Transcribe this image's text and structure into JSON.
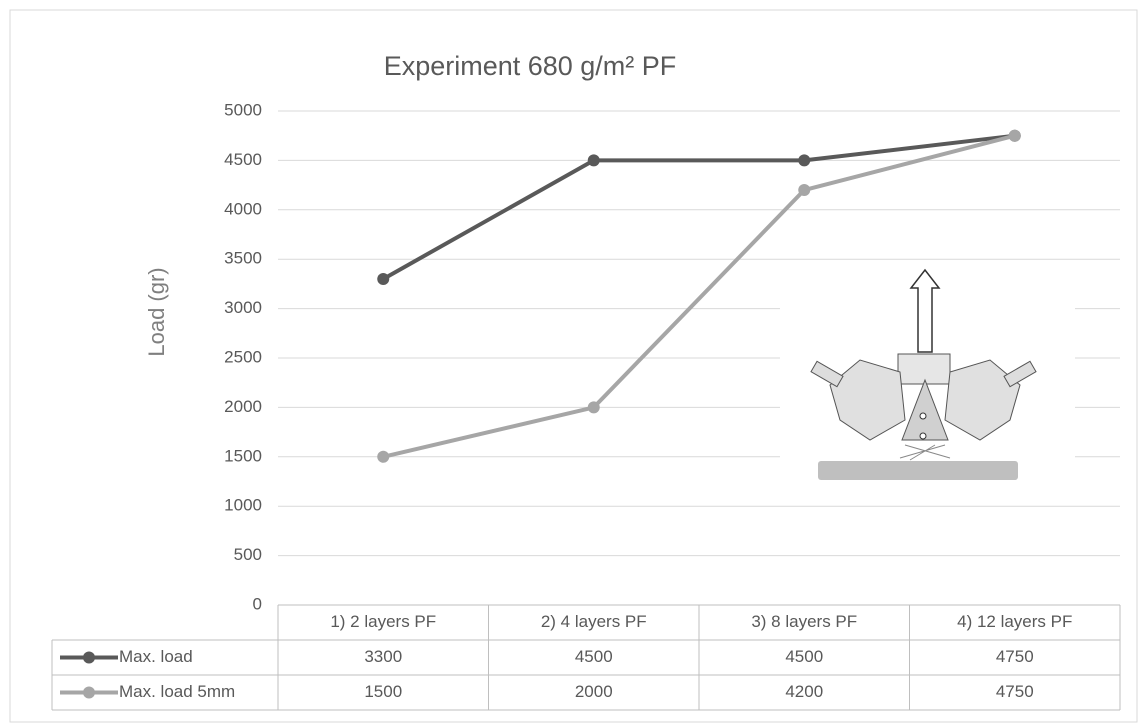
{
  "chart_data": {
    "type": "line",
    "title": "Experiment 680 g/m² PF",
    "y_label": "Load (gr)",
    "categories": [
      "1) 2 layers PF",
      "2) 4 layers PF",
      "3) 8 layers PF",
      "4) 12 layers PF"
    ],
    "series": [
      {
        "name": "Max. load",
        "color": "#595959",
        "values": [
          3300,
          4500,
          4500,
          4750
        ]
      },
      {
        "name": "Max. load 5mm",
        "color": "#a6a6a6",
        "values": [
          1500,
          2000,
          4200,
          4750
        ]
      }
    ],
    "ylim": [
      0,
      5000
    ],
    "yticks": [
      0,
      500,
      1000,
      1500,
      2000,
      2500,
      3000,
      3500,
      4000,
      4500,
      5000
    ],
    "grid": true,
    "data_table": true
  }
}
